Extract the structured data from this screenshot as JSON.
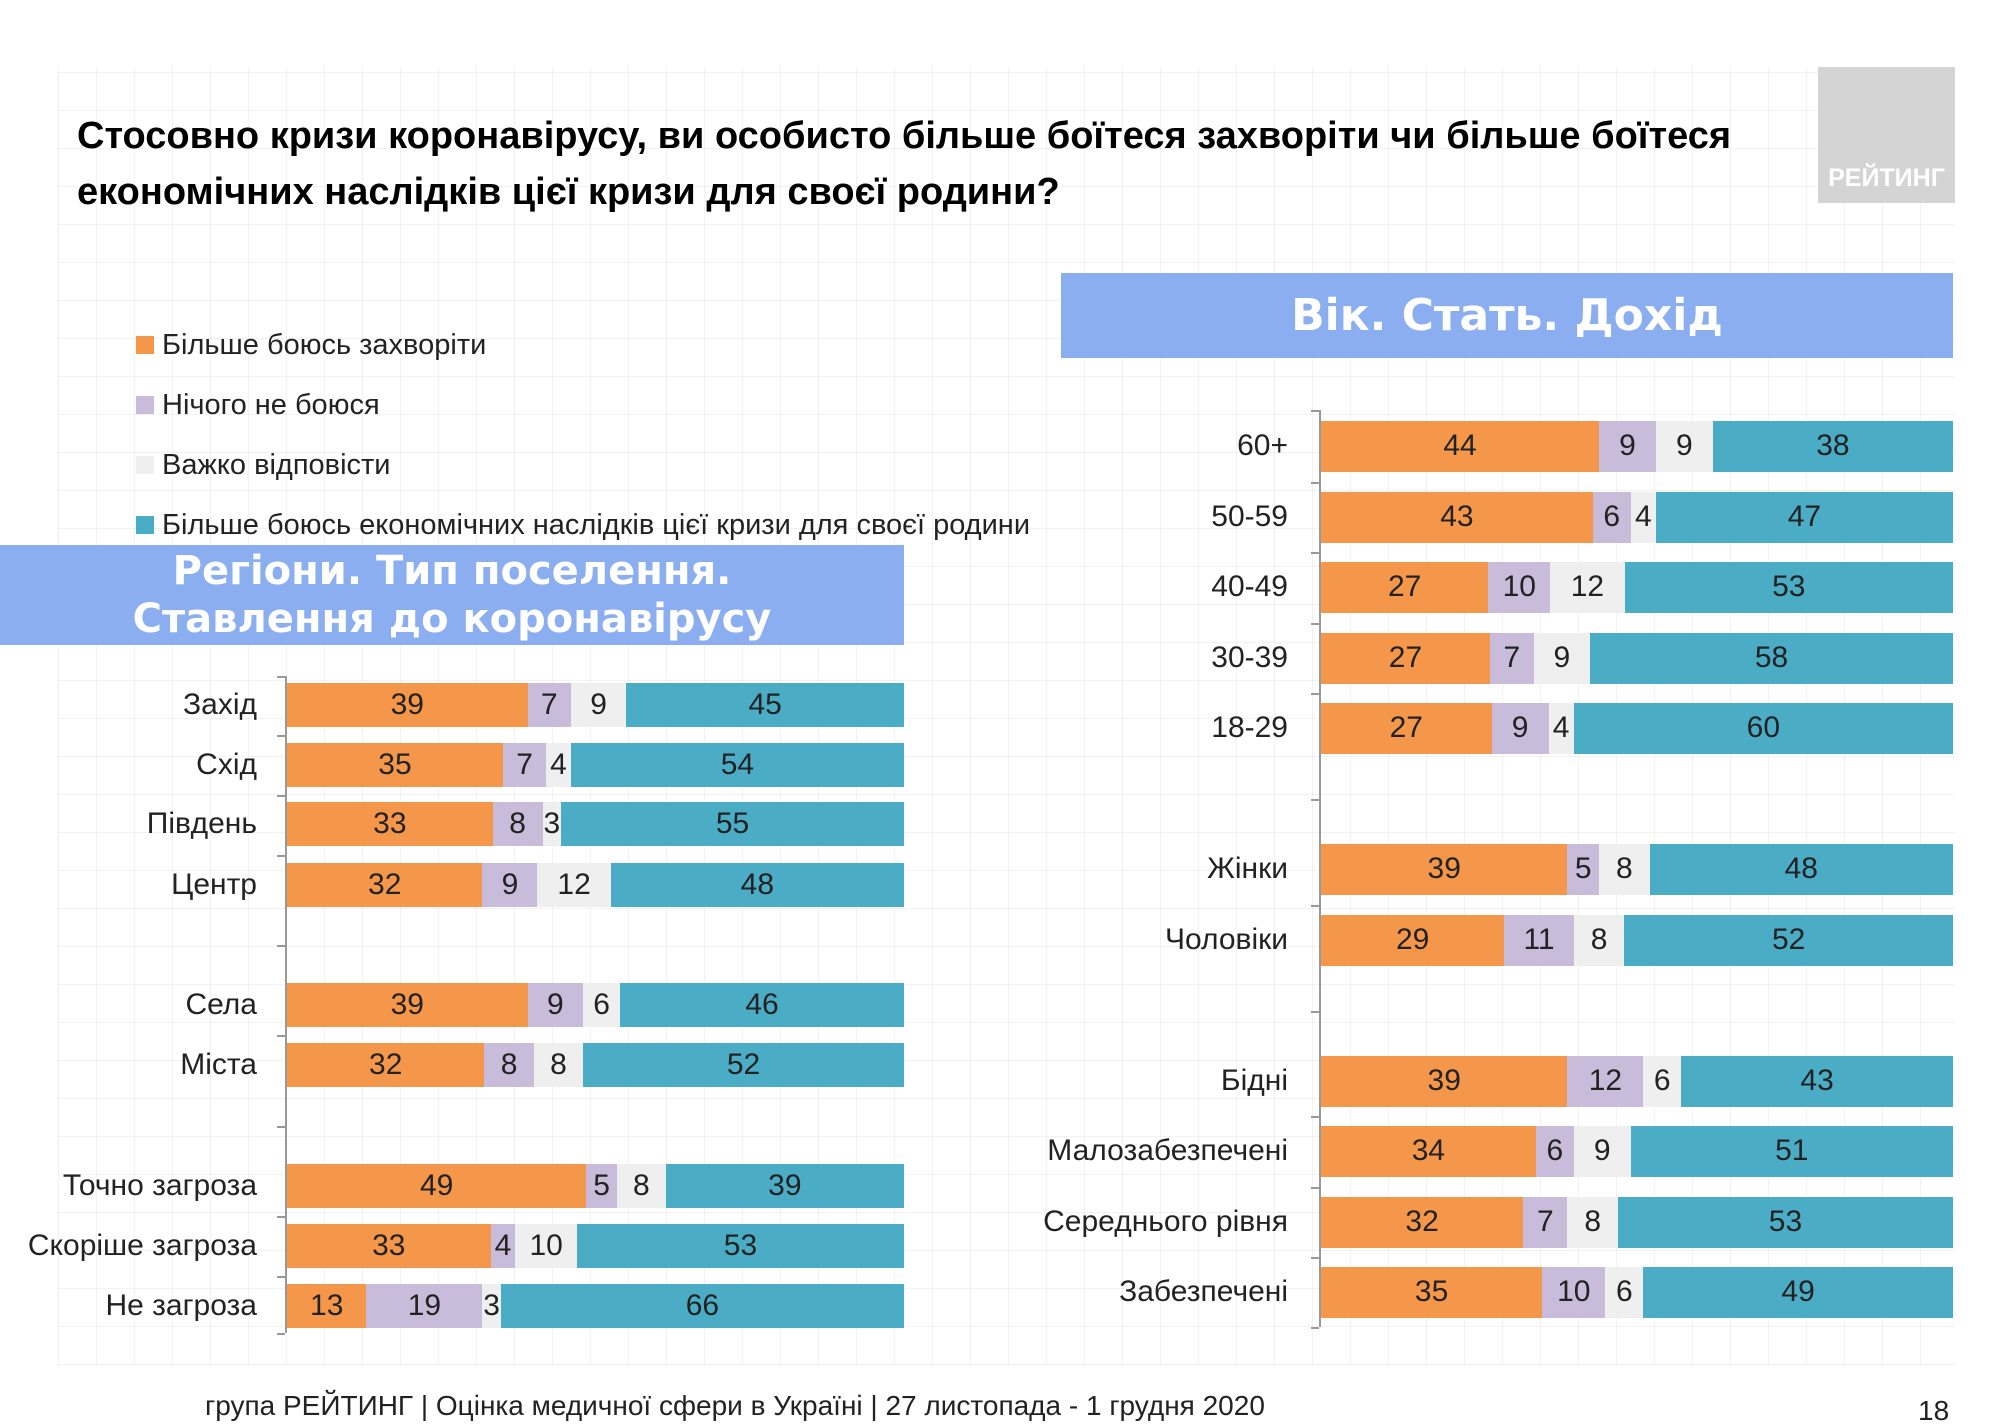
{
  "title": "Стосовно кризи коронавірусу, ви особисто більше боїтеся захворіти чи більше боїтеся економічних наслідків цієї кризи для своєї родини?",
  "logo_text": "РЕЙТИНГ",
  "footer": "група РЕЙТИНГ  |  Оцінка медичної сфери в Україні  | 27 листопада - 1 грудня 2020",
  "page_number": "18",
  "colors": {
    "orange": "#F5974A",
    "lavender": "#C9BCDA",
    "lightgray": "#EFEFEF",
    "teal": "#4BACC6",
    "band": "#8AAEF0"
  },
  "chart_data": [
    {
      "type": "bar",
      "stacked": true,
      "orientation": "horizontal",
      "title": "Регіони. Тип поселення. Ставлення до коронавірусу",
      "title_lines": [
        "Регіони. Тип поселення.",
        "Ставлення до коронавірусу"
      ],
      "legend": [
        "Більше боюсь захворіти",
        "Нічого не боюся",
        "Важко відповісти",
        "Більше боюсь економічних наслідків цієї кризи для своєї родини"
      ],
      "categories": [
        "Захід",
        "Схід",
        "Південь",
        "Центр",
        "Села",
        "Міста",
        "Точно загроза",
        "Скоріше загроза",
        "Не загроза"
      ],
      "series": [
        {
          "name": "Більше боюсь захворіти",
          "values": [
            39,
            35,
            33,
            32,
            39,
            32,
            49,
            33,
            13
          ]
        },
        {
          "name": "Нічого не боюся",
          "values": [
            7,
            7,
            8,
            9,
            9,
            8,
            5,
            4,
            19
          ]
        },
        {
          "name": "Важко відповісти",
          "values": [
            9,
            4,
            3,
            12,
            6,
            8,
            8,
            10,
            3
          ]
        },
        {
          "name": "Більше боюсь економічних наслідків цієї кризи для своєї родини",
          "values": [
            45,
            54,
            55,
            48,
            46,
            52,
            39,
            53,
            66
          ]
        }
      ]
    },
    {
      "type": "bar",
      "stacked": true,
      "orientation": "horizontal",
      "title": "Вік. Стать. Дохід",
      "categories": [
        "60+",
        "50-59",
        "40-49",
        "30-39",
        "18-29",
        "Жінки",
        "Чоловіки",
        "Бідні",
        "Малозабезпечені",
        "Середнього рівня",
        "Забезпечені"
      ],
      "series": [
        {
          "name": "Більше боюсь захворіти",
          "values": [
            44,
            43,
            27,
            27,
            27,
            39,
            29,
            39,
            34,
            32,
            35
          ]
        },
        {
          "name": "Нічого не боюся",
          "values": [
            9,
            6,
            10,
            7,
            9,
            5,
            11,
            12,
            6,
            7,
            10
          ]
        },
        {
          "name": "Важко відповісти",
          "values": [
            9,
            4,
            12,
            9,
            4,
            8,
            8,
            6,
            9,
            8,
            6
          ]
        },
        {
          "name": "Більше боюсь економічних наслідків цієї кризи для своєї родини",
          "values": [
            38,
            47,
            53,
            58,
            60,
            48,
            52,
            43,
            51,
            53,
            49
          ]
        }
      ]
    }
  ]
}
